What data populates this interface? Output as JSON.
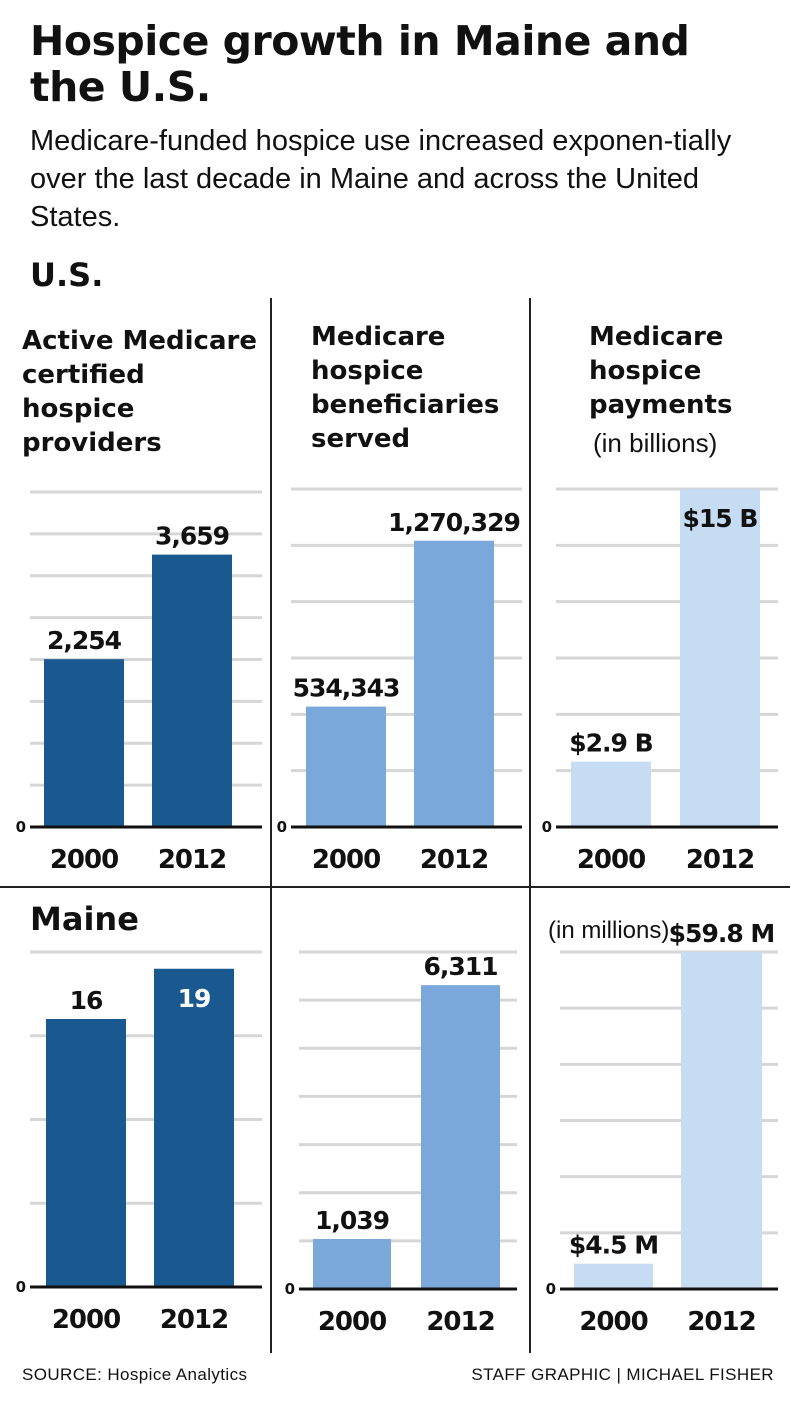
{
  "header": {
    "title": "Hospice growth in Maine and the U.S.",
    "subtitle": "Medicare-funded hospice use increased exponen-tially over the last decade in Maine and across the United States."
  },
  "regions": {
    "us": "U.S.",
    "maine": "Maine"
  },
  "panel_titles": {
    "providers": [
      "Active Medicare",
      "certified",
      "hospice",
      "providers"
    ],
    "beneficiaries": [
      "Medicare",
      "hospice",
      "beneficiaries",
      "served"
    ],
    "payments": [
      "Medicare",
      "hospice",
      "payments"
    ],
    "payments_unit": "(in billions)",
    "maine_payments_unit": "(in millions)"
  },
  "footer": {
    "source": "SOURCE: Hospice Analytics",
    "credit": "STAFF GRAPHIC | MICHAEL FISHER"
  },
  "colors": {
    "dark_blue": "#1a5890",
    "mid_blue": "#7aa8da",
    "light_blue": "#c6dcf2",
    "gridline": "#d6d6d6",
    "axis": "#111111",
    "label_on_bar": "#ffffff"
  },
  "chart_data": [
    {
      "type": "bar",
      "region": "U.S.",
      "title": "Active Medicare certified hospice providers",
      "categories": [
        "2000",
        "2012"
      ],
      "values": [
        2254,
        3659
      ],
      "value_labels": [
        "2,254",
        "3,659"
      ],
      "ylim": [
        0,
        4500
      ],
      "y_tick_labels": [
        "0"
      ],
      "grid": true,
      "color": "#1a5890"
    },
    {
      "type": "bar",
      "region": "U.S.",
      "title": "Medicare hospice beneficiaries served",
      "categories": [
        "2000",
        "2012"
      ],
      "values": [
        534343,
        1270329
      ],
      "value_labels": [
        "534,343",
        "1,270,329"
      ],
      "ylim": [
        0,
        1500000
      ],
      "y_tick_labels": [
        "0"
      ],
      "grid": true,
      "color": "#7aa8da"
    },
    {
      "type": "bar",
      "region": "U.S.",
      "title": "Medicare hospice payments",
      "unit": "(in billions)",
      "categories": [
        "2000",
        "2012"
      ],
      "values": [
        2.9,
        15
      ],
      "value_labels": [
        "$2.9 B",
        "$15 B"
      ],
      "ylim": [
        0,
        15
      ],
      "y_tick_labels": [
        "0"
      ],
      "grid": true,
      "color": "#c6dcf2"
    },
    {
      "type": "bar",
      "region": "Maine",
      "title": "Active Medicare certified hospice providers",
      "categories": [
        "2000",
        "2012"
      ],
      "values": [
        16,
        19
      ],
      "value_labels": [
        "16",
        "19"
      ],
      "ylim": [
        0,
        20
      ],
      "y_tick_labels": [
        "0"
      ],
      "grid": true,
      "color": "#1a5890"
    },
    {
      "type": "bar",
      "region": "Maine",
      "title": "Medicare hospice beneficiaries served",
      "categories": [
        "2000",
        "2012"
      ],
      "values": [
        1039,
        6311
      ],
      "value_labels": [
        "1,039",
        "6,311"
      ],
      "ylim": [
        0,
        7000
      ],
      "y_tick_labels": [
        "0"
      ],
      "grid": true,
      "color": "#7aa8da"
    },
    {
      "type": "bar",
      "region": "Maine",
      "title": "Medicare hospice payments",
      "unit": "(in millions)",
      "categories": [
        "2000",
        "2012"
      ],
      "values": [
        4.5,
        59.8
      ],
      "value_labels": [
        "$4.5 M",
        "$59.8 M"
      ],
      "ylim": [
        0,
        59.8
      ],
      "y_tick_labels": [
        "0"
      ],
      "grid": true,
      "color": "#c6dcf2"
    }
  ]
}
